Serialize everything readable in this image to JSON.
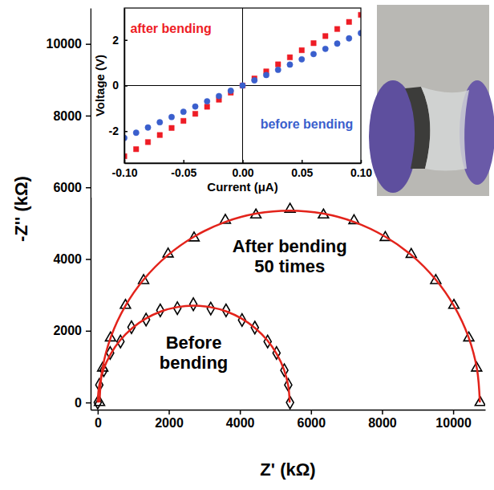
{
  "chart_data": [
    {
      "type": "scatter",
      "x_label": "Z' (kΩ)",
      "y_label": "-Z'' (kΩ)",
      "xlim": [
        -200,
        10900
      ],
      "xticks": [
        0,
        2000,
        4000,
        6000,
        8000,
        10000
      ],
      "ylim": [
        -200,
        11000
      ],
      "yticks": [
        0,
        2000,
        4000,
        6000,
        8000,
        10000
      ],
      "grid": false,
      "series": [
        {
          "name": "Before bending",
          "type": "scatter",
          "color": "#000000",
          "marker": "diamond-open",
          "x": [
            0,
            45,
            170,
            350,
            640,
            950,
            1360,
            1760,
            2240,
            2690,
            3180,
            3610,
            4060,
            4420,
            4780,
            5030,
            5250,
            5360,
            5410
          ],
          "values": [
            0,
            490,
            900,
            1380,
            1700,
            2100,
            2310,
            2570,
            2630,
            2740,
            2620,
            2570,
            2300,
            2090,
            1700,
            1380,
            900,
            490,
            0
          ]
        },
        {
          "name": "After bending 50 times",
          "type": "scatter",
          "color": "#000000",
          "marker": "triangle-open",
          "x": [
            50,
            140,
            360,
            780,
            1290,
            1980,
            2710,
            3590,
            4450,
            5410,
            6350,
            7210,
            8090,
            8820,
            9510,
            10020,
            10440,
            10660,
            10760
          ],
          "values": [
            0,
            960,
            1800,
            2710,
            3400,
            4140,
            4590,
            5080,
            5230,
            5390,
            5230,
            5070,
            4600,
            4130,
            3400,
            2710,
            1800,
            960,
            0
          ]
        },
        {
          "type": "line",
          "color": "#e3231b",
          "line_style": "solid",
          "x": [
            0,
            41,
            162,
            362,
            632,
            964,
            1350,
            1777,
            2231,
            2700,
            3169,
            3623,
            4050,
            4436,
            4768,
            5038,
            5238,
            5359,
            5400
          ],
          "values": [
            0,
            469,
            923,
            1350,
            1736,
            2068,
            2338,
            2538,
            2659,
            2700,
            2659,
            2538,
            2338,
            2068,
            1736,
            1350,
            923,
            469,
            0
          ]
        },
        {
          "type": "line",
          "color": "#e3231b",
          "line_style": "solid",
          "x": [
            50,
            130,
            371,
            767,
            1302,
            1960,
            2725,
            3570,
            4469,
            5400,
            6331,
            7230,
            8075,
            8840,
            9498,
            10033,
            10429,
            10670,
            10750
          ],
          "values": [
            0,
            931,
            1830,
            2675,
            3439,
            4098,
            4633,
            5029,
            5270,
            5350,
            5270,
            5029,
            4633,
            4098,
            3439,
            2675,
            1830,
            931,
            0
          ]
        }
      ],
      "annotations": [
        {
          "text": "Before bending",
          "x": 2700,
          "y": 1500
        },
        {
          "text": "After bending 50 times",
          "x": 5400,
          "y": 4200
        }
      ]
    },
    {
      "type": "scatter",
      "x_label": "Current (μA)",
      "y_label": "Voltage (V)",
      "xlim": [
        -0.1,
        0.1
      ],
      "xticks": [
        {
          "value": -0.1,
          "label": "-0.10"
        },
        {
          "value": -0.05,
          "label": "-0.05"
        },
        {
          "value": 0,
          "label": "0.00"
        },
        {
          "value": 0.05,
          "label": "0.05"
        },
        {
          "value": 0.1,
          "label": "0.10"
        }
      ],
      "ylim": [
        -3.4,
        3.4
      ],
      "yticks": [
        -2,
        0,
        2
      ],
      "grid": false,
      "series": [
        {
          "name": "after bending",
          "color": "#ee1c25",
          "marker": "square",
          "x": [
            -0.1,
            -0.09,
            -0.08,
            -0.07,
            -0.06,
            -0.05,
            -0.04,
            -0.03,
            -0.02,
            -0.01,
            0,
            0.01,
            0.02,
            0.03,
            0.04,
            0.05,
            0.06,
            0.07,
            0.08,
            0.09,
            0.1
          ],
          "values": [
            -3.1,
            -2.79,
            -2.48,
            -2.17,
            -1.86,
            -1.55,
            -1.24,
            -0.93,
            -0.62,
            -0.31,
            0,
            0.31,
            0.62,
            0.93,
            1.24,
            1.55,
            1.86,
            2.17,
            2.48,
            2.79,
            3.1
          ]
        },
        {
          "name": "before bending",
          "color": "#3a5fcd",
          "marker": "circle",
          "x": [
            -0.1,
            -0.09,
            -0.08,
            -0.07,
            -0.06,
            -0.05,
            -0.04,
            -0.03,
            -0.02,
            -0.01,
            0,
            0.01,
            0.02,
            0.03,
            0.04,
            0.05,
            0.06,
            0.07,
            0.08,
            0.09,
            0.1
          ],
          "values": [
            -2.3,
            -2.07,
            -1.84,
            -1.61,
            -1.38,
            -1.15,
            -0.92,
            -0.69,
            -0.46,
            -0.23,
            0,
            0.23,
            0.46,
            0.69,
            0.92,
            1.15,
            1.38,
            1.61,
            1.84,
            2.07,
            2.3
          ]
        }
      ],
      "annotations": [
        {
          "text": "after bending",
          "x": -0.095,
          "y": 2.3,
          "color": "#ee1c25"
        },
        {
          "text": "before bending",
          "x": 0.015,
          "y": -1.9,
          "color": "#3a5fcd"
        }
      ]
    }
  ]
}
